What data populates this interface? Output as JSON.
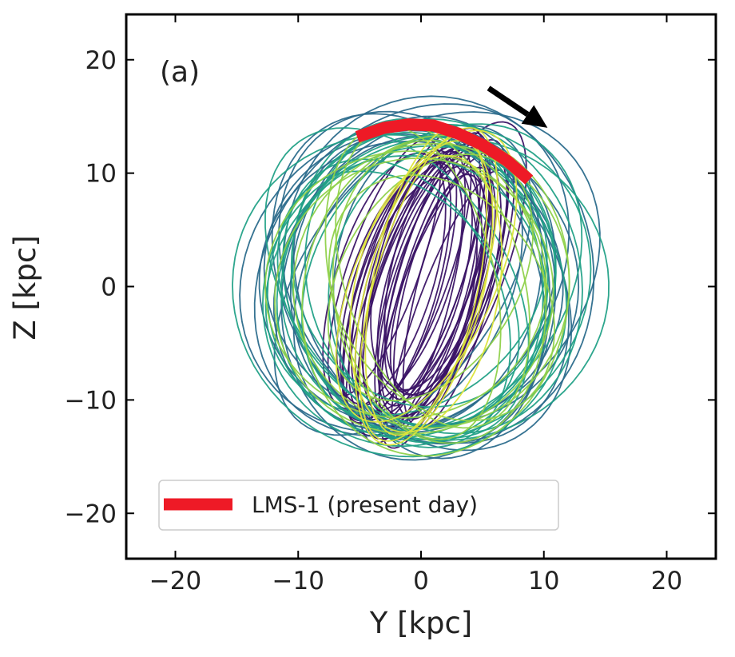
{
  "chart_data": {
    "type": "line",
    "panel_label": "(a)",
    "xlabel": "Y [kpc]",
    "ylabel": "Z [kpc]",
    "xlim": [
      -24,
      24
    ],
    "ylim": [
      -24,
      24
    ],
    "xticks": [
      -20,
      -10,
      0,
      10,
      20
    ],
    "yticks": [
      -20,
      -10,
      0,
      10,
      20
    ],
    "xtick_labels": [
      "−20",
      "−10",
      "0",
      "10",
      "20"
    ],
    "ytick_labels": [
      "−20",
      "−10",
      "0",
      "10",
      "20"
    ],
    "grid": false,
    "legend": {
      "position": "lower-left",
      "entries": [
        "LMS-1 (present day)"
      ]
    },
    "highlight": {
      "name": "LMS-1 (present day)",
      "color": "#ee1a26",
      "x": [
        -5.2,
        -3,
        -1,
        1,
        3,
        5,
        7,
        8.8
      ],
      "y": [
        13.2,
        14.0,
        14.3,
        14.2,
        13.5,
        12.5,
        11.1,
        9.4
      ]
    },
    "arrow": {
      "x": [
        5.5,
        10.3
      ],
      "y": [
        17.5,
        14.0
      ],
      "color": "#000000"
    },
    "orbit_families": [
      {
        "color": "#3b1466",
        "cx": [
          -3,
          3
        ],
        "cy": [
          -2,
          2
        ],
        "ry": [
          11,
          14
        ],
        "width": [
          2.5,
          4.5
        ],
        "tilt_deg": [
          12,
          20
        ]
      },
      {
        "color": "#2b6b8c",
        "cx": [
          -2,
          2
        ],
        "cy": [
          -1.5,
          1.5
        ],
        "ry": [
          12,
          15.5
        ],
        "width": [
          8,
          14
        ],
        "tilt_deg": [
          -40,
          40
        ]
      },
      {
        "color": "#22a187",
        "cx": [
          -2,
          2
        ],
        "cy": [
          -1.5,
          1.5
        ],
        "ry": [
          12,
          15
        ],
        "width": [
          8,
          13.5
        ],
        "tilt_deg": [
          -40,
          40
        ]
      },
      {
        "color": "#8fd14a",
        "cx": [
          -2,
          2
        ],
        "cy": [
          -1,
          1
        ],
        "ry": [
          11,
          14.5
        ],
        "width": [
          6,
          12
        ],
        "tilt_deg": [
          -30,
          30
        ]
      },
      {
        "color": "#dce43a",
        "cx": [
          -1,
          1
        ],
        "cy": [
          -1,
          1
        ],
        "ry": [
          12,
          15
        ],
        "width": [
          4,
          7
        ],
        "tilt_deg": [
          10,
          25
        ]
      }
    ]
  }
}
